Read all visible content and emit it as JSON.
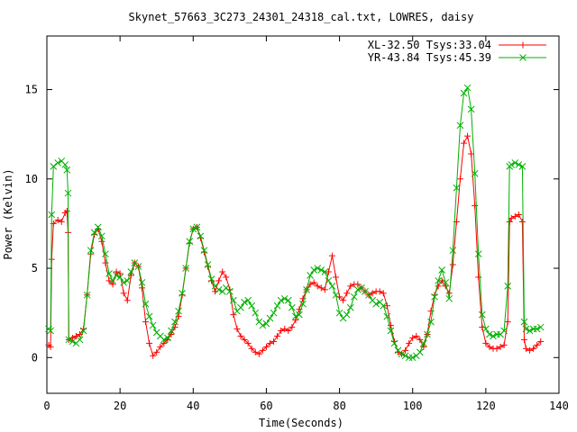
{
  "chart_data": {
    "type": "line",
    "title": "Skynet_57663_3C273_24301_24318_cal.txt, LOWRES, daisy",
    "xlabel": "Time(Seconds)",
    "ylabel": "Power (Kelvin)",
    "xlim": [
      0,
      140
    ],
    "ylim": [
      -2,
      18
    ],
    "xticks": [
      0,
      20,
      40,
      60,
      80,
      100,
      120,
      140
    ],
    "yticks": [
      0,
      5,
      10,
      15
    ],
    "xtick_labels": [
      "0",
      "20",
      "40",
      "60",
      "80",
      "100",
      "120",
      "140"
    ],
    "ytick_labels": [
      "0",
      "5",
      "10",
      "15"
    ],
    "grid": false,
    "legend_position": "top-right",
    "series": [
      {
        "name": "XL-32.50 Tsys:33.04",
        "color": "#ff0000",
        "marker": "plus",
        "points": [
          [
            0.5,
            0.7
          ],
          [
            1.0,
            0.6
          ],
          [
            1.3,
            5.5
          ],
          [
            1.8,
            7.5
          ],
          [
            3,
            7.7
          ],
          [
            4,
            7.6
          ],
          [
            5,
            8.1
          ],
          [
            5.5,
            8.2
          ],
          [
            5.8,
            7.0
          ],
          [
            6,
            1.0
          ],
          [
            7,
            1.1
          ],
          [
            8,
            1.2
          ],
          [
            9,
            1.3
          ],
          [
            10,
            1.6
          ],
          [
            11,
            3.5
          ],
          [
            12,
            5.8
          ],
          [
            13,
            6.9
          ],
          [
            14,
            7.2
          ],
          [
            15,
            6.5
          ],
          [
            16,
            5.3
          ],
          [
            17,
            4.3
          ],
          [
            18,
            4.1
          ],
          [
            19,
            4.8
          ],
          [
            20,
            4.7
          ],
          [
            21,
            3.6
          ],
          [
            22,
            3.2
          ],
          [
            23,
            4.6
          ],
          [
            24,
            5.3
          ],
          [
            25,
            5.1
          ],
          [
            26,
            3.9
          ],
          [
            27,
            2.0
          ],
          [
            28,
            0.8
          ],
          [
            29,
            0.1
          ],
          [
            30,
            0.3
          ],
          [
            31,
            0.6
          ],
          [
            32,
            0.8
          ],
          [
            33,
            1.0
          ],
          [
            34,
            1.3
          ],
          [
            35,
            1.7
          ],
          [
            36,
            2.3
          ],
          [
            37,
            3.5
          ],
          [
            38,
            5.0
          ],
          [
            39,
            6.4
          ],
          [
            40,
            7.2
          ],
          [
            41,
            7.3
          ],
          [
            42,
            6.7
          ],
          [
            43,
            5.9
          ],
          [
            44,
            5.1
          ],
          [
            45,
            4.3
          ],
          [
            46,
            3.7
          ],
          [
            47,
            4.3
          ],
          [
            48,
            4.8
          ],
          [
            49,
            4.5
          ],
          [
            50,
            3.8
          ],
          [
            51,
            2.4
          ],
          [
            52,
            1.6
          ],
          [
            53,
            1.2
          ],
          [
            54,
            1.0
          ],
          [
            55,
            0.8
          ],
          [
            56,
            0.5
          ],
          [
            57,
            0.3
          ],
          [
            58,
            0.2
          ],
          [
            59,
            0.4
          ],
          [
            60,
            0.6
          ],
          [
            61,
            0.8
          ],
          [
            62,
            0.9
          ],
          [
            63,
            1.2
          ],
          [
            64,
            1.5
          ],
          [
            65,
            1.6
          ],
          [
            66,
            1.5
          ],
          [
            67,
            1.7
          ],
          [
            68,
            2.1
          ],
          [
            69,
            2.7
          ],
          [
            70,
            3.3
          ],
          [
            71,
            3.8
          ],
          [
            72,
            4.1
          ],
          [
            73,
            4.2
          ],
          [
            74,
            4.0
          ],
          [
            75,
            3.9
          ],
          [
            76,
            3.8
          ],
          [
            77,
            4.8
          ],
          [
            78,
            5.7
          ],
          [
            79,
            4.5
          ],
          [
            80,
            3.4
          ],
          [
            81,
            3.2
          ],
          [
            82,
            3.6
          ],
          [
            83,
            4.0
          ],
          [
            84,
            4.1
          ],
          [
            85,
            4.1
          ],
          [
            86,
            3.9
          ],
          [
            87,
            3.7
          ],
          [
            88,
            3.5
          ],
          [
            89,
            3.6
          ],
          [
            90,
            3.7
          ],
          [
            91,
            3.7
          ],
          [
            92,
            3.6
          ],
          [
            93,
            2.9
          ],
          [
            94,
            1.8
          ],
          [
            95,
            0.9
          ],
          [
            96,
            0.3
          ],
          [
            97,
            0.2
          ],
          [
            98,
            0.4
          ],
          [
            99,
            0.8
          ],
          [
            100,
            1.1
          ],
          [
            101,
            1.2
          ],
          [
            102,
            1.0
          ],
          [
            103,
            0.6
          ],
          [
            104,
            1.3
          ],
          [
            105,
            2.6
          ],
          [
            106,
            3.5
          ],
          [
            107,
            4.0
          ],
          [
            108,
            4.3
          ],
          [
            109,
            4.0
          ],
          [
            110,
            3.6
          ],
          [
            111,
            5.2
          ],
          [
            112,
            7.6
          ],
          [
            113,
            10.0
          ],
          [
            114,
            12.0
          ],
          [
            115,
            12.4
          ],
          [
            116,
            11.4
          ],
          [
            117,
            8.5
          ],
          [
            118,
            4.5
          ],
          [
            119,
            1.7
          ],
          [
            120,
            0.8
          ],
          [
            121,
            0.6
          ],
          [
            122,
            0.5
          ],
          [
            123,
            0.5
          ],
          [
            124,
            0.6
          ],
          [
            125,
            0.7
          ],
          [
            126,
            2.0
          ],
          [
            126.5,
            7.6
          ],
          [
            127,
            7.8
          ],
          [
            128,
            7.9
          ],
          [
            129,
            8.0
          ],
          [
            130,
            7.6
          ],
          [
            130.5,
            1.0
          ],
          [
            131,
            0.5
          ],
          [
            132,
            0.4
          ],
          [
            133,
            0.5
          ],
          [
            134,
            0.7
          ],
          [
            135,
            0.9
          ]
        ]
      },
      {
        "name": "YR-43.84 Tsys:45.39",
        "color": "#00b000",
        "marker": "cross",
        "points": [
          [
            0.5,
            1.6
          ],
          [
            1.0,
            1.5
          ],
          [
            1.3,
            8.0
          ],
          [
            1.8,
            10.7
          ],
          [
            3,
            10.9
          ],
          [
            4,
            11.0
          ],
          [
            5,
            10.8
          ],
          [
            5.5,
            10.5
          ],
          [
            5.8,
            9.2
          ],
          [
            6,
            1.0
          ],
          [
            7,
            0.9
          ],
          [
            8,
            0.8
          ],
          [
            9,
            1.0
          ],
          [
            10,
            1.5
          ],
          [
            11,
            3.5
          ],
          [
            12,
            6.0
          ],
          [
            13,
            7.0
          ],
          [
            14,
            7.3
          ],
          [
            15,
            6.8
          ],
          [
            16,
            5.8
          ],
          [
            17,
            4.7
          ],
          [
            18,
            4.3
          ],
          [
            19,
            4.6
          ],
          [
            20,
            4.5
          ],
          [
            21,
            4.2
          ],
          [
            22,
            4.3
          ],
          [
            23,
            4.8
          ],
          [
            24,
            5.3
          ],
          [
            25,
            5.1
          ],
          [
            26,
            4.2
          ],
          [
            27,
            3.0
          ],
          [
            28,
            2.3
          ],
          [
            29,
            1.8
          ],
          [
            30,
            1.4
          ],
          [
            31,
            1.2
          ],
          [
            32,
            1.0
          ],
          [
            33,
            1.1
          ],
          [
            34,
            1.5
          ],
          [
            35,
            2.0
          ],
          [
            36,
            2.6
          ],
          [
            37,
            3.6
          ],
          [
            38,
            5.0
          ],
          [
            39,
            6.5
          ],
          [
            40,
            7.2
          ],
          [
            41,
            7.3
          ],
          [
            42,
            6.8
          ],
          [
            43,
            6.0
          ],
          [
            44,
            5.2
          ],
          [
            45,
            4.4
          ],
          [
            46,
            4.0
          ],
          [
            47,
            3.8
          ],
          [
            48,
            3.7
          ],
          [
            49,
            3.9
          ],
          [
            50,
            3.7
          ],
          [
            51,
            3.2
          ],
          [
            52,
            2.6
          ],
          [
            53,
            2.8
          ],
          [
            54,
            3.1
          ],
          [
            55,
            3.2
          ],
          [
            56,
            2.9
          ],
          [
            57,
            2.5
          ],
          [
            58,
            2.0
          ],
          [
            59,
            1.8
          ],
          [
            60,
            1.9
          ],
          [
            61,
            2.2
          ],
          [
            62,
            2.5
          ],
          [
            63,
            2.9
          ],
          [
            64,
            3.2
          ],
          [
            65,
            3.3
          ],
          [
            66,
            3.2
          ],
          [
            67,
            2.8
          ],
          [
            68,
            2.3
          ],
          [
            69,
            2.4
          ],
          [
            70,
            3.0
          ],
          [
            71,
            3.8
          ],
          [
            72,
            4.6
          ],
          [
            73,
            4.9
          ],
          [
            74,
            5.0
          ],
          [
            75,
            4.9
          ],
          [
            76,
            4.8
          ],
          [
            77,
            4.3
          ],
          [
            78,
            4.0
          ],
          [
            79,
            3.5
          ],
          [
            80,
            2.5
          ],
          [
            81,
            2.2
          ],
          [
            82,
            2.4
          ],
          [
            83,
            2.8
          ],
          [
            84,
            3.4
          ],
          [
            85,
            3.8
          ],
          [
            86,
            3.9
          ],
          [
            87,
            3.7
          ],
          [
            88,
            3.5
          ],
          [
            89,
            3.2
          ],
          [
            90,
            3.0
          ],
          [
            91,
            3.1
          ],
          [
            92,
            2.9
          ],
          [
            93,
            2.3
          ],
          [
            94,
            1.5
          ],
          [
            95,
            0.8
          ],
          [
            96,
            0.4
          ],
          [
            97,
            0.2
          ],
          [
            98,
            0.1
          ],
          [
            99,
            0.0
          ],
          [
            100,
            0.0
          ],
          [
            101,
            0.1
          ],
          [
            102,
            0.3
          ],
          [
            103,
            0.8
          ],
          [
            104,
            1.3
          ],
          [
            105,
            2.0
          ],
          [
            106,
            3.4
          ],
          [
            107,
            4.3
          ],
          [
            108,
            4.9
          ],
          [
            109,
            4.2
          ],
          [
            110,
            3.3
          ],
          [
            111,
            6.0
          ],
          [
            112,
            9.5
          ],
          [
            113,
            13.0
          ],
          [
            114,
            14.8
          ],
          [
            115,
            15.1
          ],
          [
            116,
            13.9
          ],
          [
            117,
            10.3
          ],
          [
            118,
            5.8
          ],
          [
            119,
            2.4
          ],
          [
            120,
            1.6
          ],
          [
            121,
            1.3
          ],
          [
            122,
            1.2
          ],
          [
            123,
            1.3
          ],
          [
            124,
            1.3
          ],
          [
            125,
            1.5
          ],
          [
            126,
            4.0
          ],
          [
            126.5,
            10.7
          ],
          [
            127,
            10.8
          ],
          [
            128,
            10.9
          ],
          [
            129,
            10.8
          ],
          [
            130,
            10.7
          ],
          [
            130.5,
            2.0
          ],
          [
            131,
            1.6
          ],
          [
            132,
            1.5
          ],
          [
            133,
            1.6
          ],
          [
            134,
            1.6
          ],
          [
            135,
            1.7
          ]
        ]
      }
    ]
  }
}
